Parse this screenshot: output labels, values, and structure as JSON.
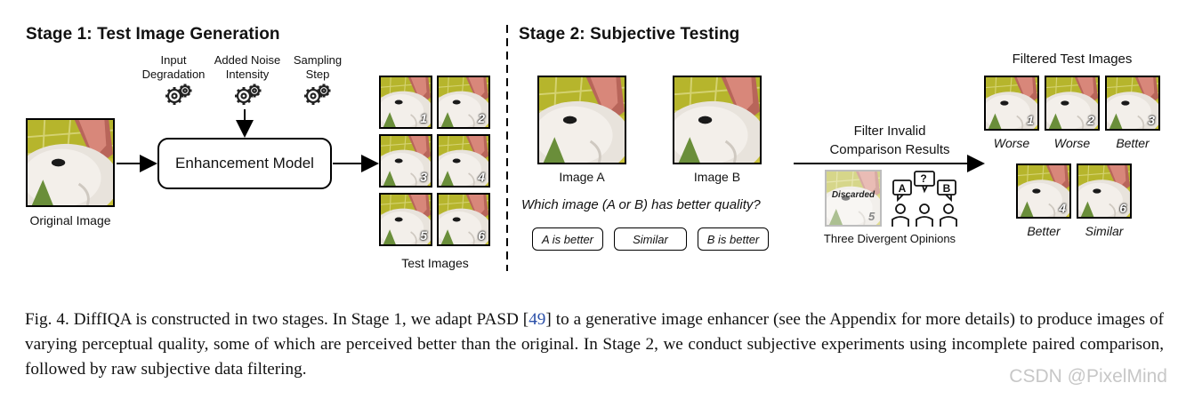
{
  "stage1": {
    "title": "Stage 1: Test Image Generation",
    "params": [
      {
        "label": "Input\nDegradation",
        "icon": "gear-icon"
      },
      {
        "label": "Added Noise\nIntensity",
        "icon": "gear-icon"
      },
      {
        "label": "Sampling\nStep",
        "icon": "gear-icon"
      }
    ],
    "model_label": "Enhancement Model",
    "original_label": "Original Image",
    "test_images_label": "Test Images",
    "test_image_numbers": [
      "1",
      "2",
      "3",
      "4",
      "5",
      "6"
    ]
  },
  "stage2": {
    "title": "Stage 2: Subjective Testing",
    "image_a_label": "Image A",
    "image_b_label": "Image B",
    "question": "Which image (A or B) has better quality?",
    "options": [
      "A is better",
      "Similar",
      "B is better"
    ],
    "filter_label": "Filter Invalid\nComparison Results",
    "discarded_label": "Discarded",
    "discarded_number": "5",
    "opinions_label": "Three Divergent Opinions",
    "opinion_bubbles": [
      "A",
      "?",
      "B"
    ],
    "filtered_title": "Filtered Test Images",
    "filtered": [
      {
        "number": "1",
        "verdict": "Worse"
      },
      {
        "number": "2",
        "verdict": "Worse"
      },
      {
        "number": "3",
        "verdict": "Better"
      },
      {
        "number": "4",
        "verdict": "Better"
      },
      {
        "number": "6",
        "verdict": "Similar"
      }
    ]
  },
  "caption": {
    "prefix": "Fig. 4.  DiffIQA is constructed in two stages. In Stage 1, we adapt PASD [",
    "ref": "49",
    "suffix": "] to a generative image enhancer (see the Appendix for more details) to produce images of varying perceptual quality, some of which are perceived better than the original.  In Stage 2, we conduct subjective experiments using incomplete paired comparison, followed by raw subjective data filtering."
  },
  "watermark": "CSDN @PixelMind",
  "colors": {
    "ink": "#111111",
    "ref_link": "#2a4fa8",
    "watermark": "#c7c7c7"
  }
}
